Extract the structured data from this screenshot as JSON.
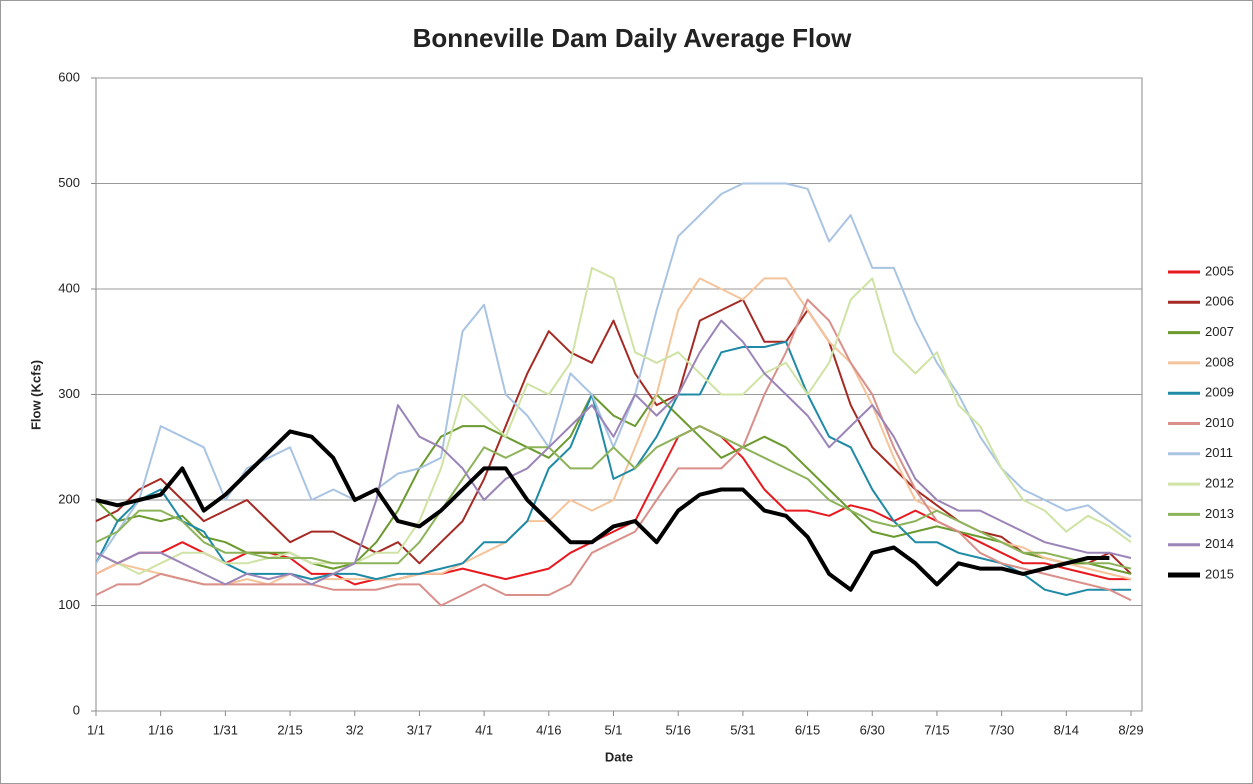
{
  "chart_data": {
    "type": "line",
    "title": "Bonneville Dam Daily Average Flow",
    "x_label": "Date",
    "y_label": "Flow (Kcfs)",
    "categories": [
      "1/1",
      null,
      null,
      "1/16",
      null,
      null,
      "1/31",
      null,
      null,
      "2/15",
      null,
      null,
      "3/2",
      null,
      null,
      "3/17",
      null,
      null,
      "4/1",
      null,
      null,
      "4/16",
      null,
      null,
      "5/1",
      null,
      null,
      "5/16",
      null,
      null,
      "5/31",
      null,
      null,
      "6/15",
      null,
      null,
      "6/30",
      null,
      null,
      "7/15",
      null,
      null,
      "7/30",
      null,
      null,
      "8/14",
      null,
      null,
      "8/29"
    ],
    "ylim": [
      0,
      600
    ],
    "yticks": [
      0,
      100,
      200,
      300,
      400,
      500,
      600
    ],
    "grid": true,
    "legend": "right",
    "series": [
      {
        "name": "2005",
        "color": "#e8191e",
        "width": 2,
        "values": [
          130,
          140,
          150,
          150,
          160,
          150,
          140,
          150,
          150,
          145,
          130,
          130,
          120,
          125,
          125,
          130,
          130,
          135,
          130,
          125,
          130,
          135,
          150,
          160,
          170,
          180,
          220,
          260,
          270,
          260,
          240,
          210,
          190,
          190,
          185,
          195,
          190,
          180,
          190,
          180,
          170,
          160,
          150,
          140,
          140,
          135,
          130,
          125,
          125
        ]
      },
      {
        "name": "2006",
        "color": "#a52a23",
        "width": 2,
        "values": [
          180,
          190,
          210,
          220,
          200,
          180,
          190,
          200,
          180,
          160,
          170,
          170,
          160,
          150,
          160,
          140,
          160,
          180,
          220,
          270,
          320,
          360,
          340,
          330,
          370,
          320,
          290,
          300,
          370,
          380,
          390,
          350,
          350,
          380,
          350,
          290,
          250,
          230,
          210,
          195,
          180,
          170,
          165,
          150,
          145,
          140,
          140,
          150,
          130
        ]
      },
      {
        "name": "2007",
        "color": "#6b9a2e",
        "width": 2,
        "values": [
          200,
          180,
          185,
          180,
          185,
          165,
          160,
          150,
          150,
          150,
          140,
          135,
          140,
          160,
          190,
          230,
          260,
          270,
          270,
          260,
          250,
          240,
          260,
          300,
          280,
          270,
          300,
          280,
          260,
          240,
          250,
          260,
          250,
          230,
          210,
          190,
          170,
          165,
          170,
          175,
          170,
          165,
          160,
          150,
          145,
          140,
          140,
          135,
          130
        ]
      },
      {
        "name": "2008",
        "color": "#f5c49a",
        "width": 2,
        "values": [
          130,
          140,
          135,
          130,
          125,
          120,
          120,
          125,
          120,
          130,
          125,
          125,
          125,
          125,
          125,
          130,
          130,
          140,
          150,
          160,
          180,
          180,
          200,
          190,
          200,
          250,
          300,
          380,
          410,
          400,
          390,
          410,
          410,
          380,
          350,
          330,
          290,
          240,
          200,
          190,
          180,
          170,
          160,
          155,
          145,
          140,
          135,
          130,
          125
        ]
      },
      {
        "name": "2009",
        "color": "#1f8aa6",
        "width": 2,
        "values": [
          140,
          180,
          200,
          210,
          180,
          170,
          140,
          130,
          130,
          130,
          125,
          130,
          130,
          125,
          130,
          130,
          135,
          140,
          160,
          160,
          180,
          230,
          250,
          300,
          220,
          230,
          260,
          300,
          300,
          340,
          345,
          345,
          350,
          300,
          260,
          250,
          210,
          180,
          160,
          160,
          150,
          145,
          140,
          130,
          115,
          110,
          115,
          115,
          115
        ]
      },
      {
        "name": "2010",
        "color": "#d98f8a",
        "width": 2,
        "values": [
          110,
          120,
          120,
          130,
          125,
          120,
          120,
          120,
          120,
          120,
          120,
          115,
          115,
          115,
          120,
          120,
          100,
          110,
          120,
          110,
          110,
          110,
          120,
          150,
          160,
          170,
          200,
          230,
          230,
          230,
          250,
          300,
          340,
          390,
          370,
          330,
          300,
          250,
          210,
          180,
          170,
          150,
          140,
          135,
          130,
          125,
          120,
          115,
          105
        ]
      },
      {
        "name": "2011",
        "color": "#a9c4e3",
        "width": 2,
        "values": [
          140,
          170,
          200,
          270,
          260,
          250,
          200,
          230,
          240,
          250,
          200,
          210,
          200,
          210,
          225,
          230,
          240,
          360,
          385,
          300,
          280,
          250,
          320,
          300,
          250,
          300,
          380,
          450,
          470,
          490,
          500,
          500,
          500,
          495,
          445,
          470,
          420,
          420,
          370,
          330,
          300,
          260,
          230,
          210,
          200,
          190,
          195,
          180,
          165
        ]
      },
      {
        "name": "2012",
        "color": "#cfe3a5",
        "width": 2,
        "values": [
          150,
          140,
          130,
          140,
          150,
          150,
          140,
          140,
          145,
          150,
          140,
          140,
          140,
          150,
          150,
          180,
          230,
          300,
          280,
          260,
          310,
          300,
          330,
          420,
          410,
          340,
          330,
          340,
          320,
          300,
          300,
          320,
          330,
          300,
          330,
          390,
          410,
          340,
          320,
          340,
          290,
          270,
          230,
          200,
          190,
          170,
          185,
          175,
          160
        ]
      },
      {
        "name": "2013",
        "color": "#8db35a",
        "width": 2,
        "values": [
          160,
          170,
          190,
          190,
          180,
          160,
          150,
          150,
          145,
          145,
          145,
          140,
          140,
          140,
          140,
          160,
          190,
          220,
          250,
          240,
          250,
          250,
          230,
          230,
          250,
          230,
          250,
          260,
          270,
          260,
          250,
          240,
          230,
          220,
          200,
          190,
          180,
          175,
          180,
          190,
          180,
          170,
          160,
          150,
          150,
          145,
          140,
          140,
          135
        ]
      },
      {
        "name": "2014",
        "color": "#9b84b8",
        "width": 2,
        "values": [
          150,
          140,
          150,
          150,
          140,
          130,
          120,
          130,
          125,
          130,
          120,
          130,
          140,
          200,
          290,
          260,
          250,
          230,
          200,
          220,
          230,
          250,
          270,
          290,
          260,
          300,
          280,
          300,
          340,
          370,
          350,
          320,
          300,
          280,
          250,
          270,
          290,
          260,
          220,
          200,
          190,
          190,
          180,
          170,
          160,
          155,
          150,
          150,
          145
        ]
      },
      {
        "name": "2015",
        "color": "#000000",
        "width": 4,
        "values": [
          200,
          195,
          200,
          205,
          230,
          190,
          205,
          225,
          245,
          265,
          260,
          240,
          200,
          210,
          180,
          175,
          190,
          210,
          230,
          230,
          200,
          180,
          160,
          160,
          175,
          180,
          160,
          190,
          205,
          210,
          210,
          190,
          185,
          165,
          130,
          115,
          150,
          155,
          140,
          120,
          140,
          135,
          135,
          130,
          135,
          140,
          145,
          145,
          null
        ]
      }
    ]
  }
}
